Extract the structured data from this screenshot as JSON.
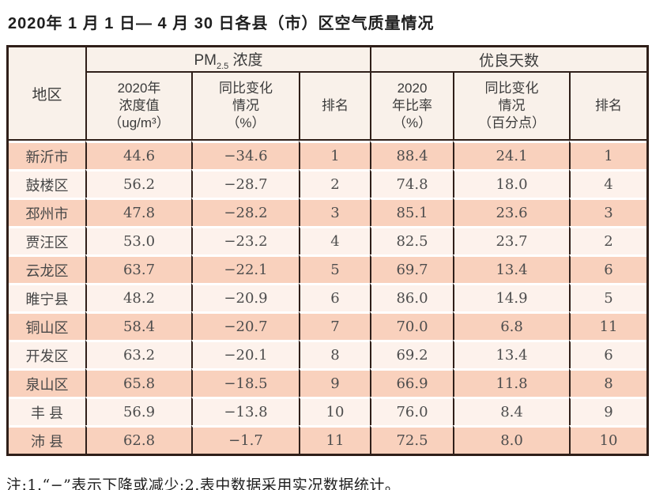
{
  "title": "2020年 1 月 1 日— 4 月 30 日各县（市）区空气质量情况",
  "note": "注:1.“−”表示下降或减少;2.表中数据采用实况数据统计。",
  "colors": {
    "page_bg": "#ffffff",
    "border_dark": "#2f1f19",
    "header_bg": "#f9f1ea",
    "row_odd_bg": "#f9d1bd",
    "row_even_bg": "#fdf2ec"
  },
  "chart_data": {
    "type": "table",
    "title": "2020年1月1日—4月30日各县（市）区空气质量情况",
    "header": {
      "region": "地区",
      "pm_group": {
        "base": "PM",
        "sub": "2.5",
        "rest": " 浓度"
      },
      "good_group": "优良天数",
      "sub_cols": [
        [
          "2020年",
          "浓度值",
          "（ug/m³）"
        ],
        [
          "同比变化",
          "情况",
          "（%）"
        ],
        [
          "排名"
        ],
        [
          "2020",
          "年比率",
          "（%）"
        ],
        [
          "同比变化",
          "情况",
          "（百分点）"
        ],
        [
          "排名"
        ]
      ]
    },
    "columns": [
      "地区",
      "PM2.5浓度 2020年浓度值（ug/m³）",
      "PM2.5浓度 同比变化情况（%）",
      "PM2.5浓度 排名",
      "优良天数 2020年比率（%）",
      "优良天数 同比变化情况（百分点）",
      "优良天数 排名"
    ],
    "rows": [
      [
        "新沂市",
        "44.6",
        "−34.6",
        "1",
        "88.4",
        "24.1",
        "1"
      ],
      [
        "鼓楼区",
        "56.2",
        "−28.7",
        "2",
        "74.8",
        "18.0",
        "4"
      ],
      [
        "邳州市",
        "47.8",
        "−28.2",
        "3",
        "85.1",
        "23.6",
        "3"
      ],
      [
        "贾汪区",
        "53.0",
        "−23.2",
        "4",
        "82.5",
        "23.7",
        "2"
      ],
      [
        "云龙区",
        "63.7",
        "−22.1",
        "5",
        "69.7",
        "13.4",
        "6"
      ],
      [
        "睢宁县",
        "48.2",
        "−20.9",
        "6",
        "86.0",
        "14.9",
        "5"
      ],
      [
        "铜山区",
        "58.4",
        "−20.7",
        "7",
        "70.0",
        "6.8",
        "11"
      ],
      [
        "开发区",
        "63.2",
        "−20.1",
        "8",
        "69.2",
        "13.4",
        "6"
      ],
      [
        "泉山区",
        "65.8",
        "−18.5",
        "9",
        "66.9",
        "11.8",
        "8"
      ],
      [
        "丰 县",
        "56.9",
        "−13.8",
        "10",
        "76.0",
        "8.4",
        "9"
      ],
      [
        "沛 县",
        "62.8",
        "−1.7",
        "11",
        "72.5",
        "8.0",
        "10"
      ]
    ]
  }
}
